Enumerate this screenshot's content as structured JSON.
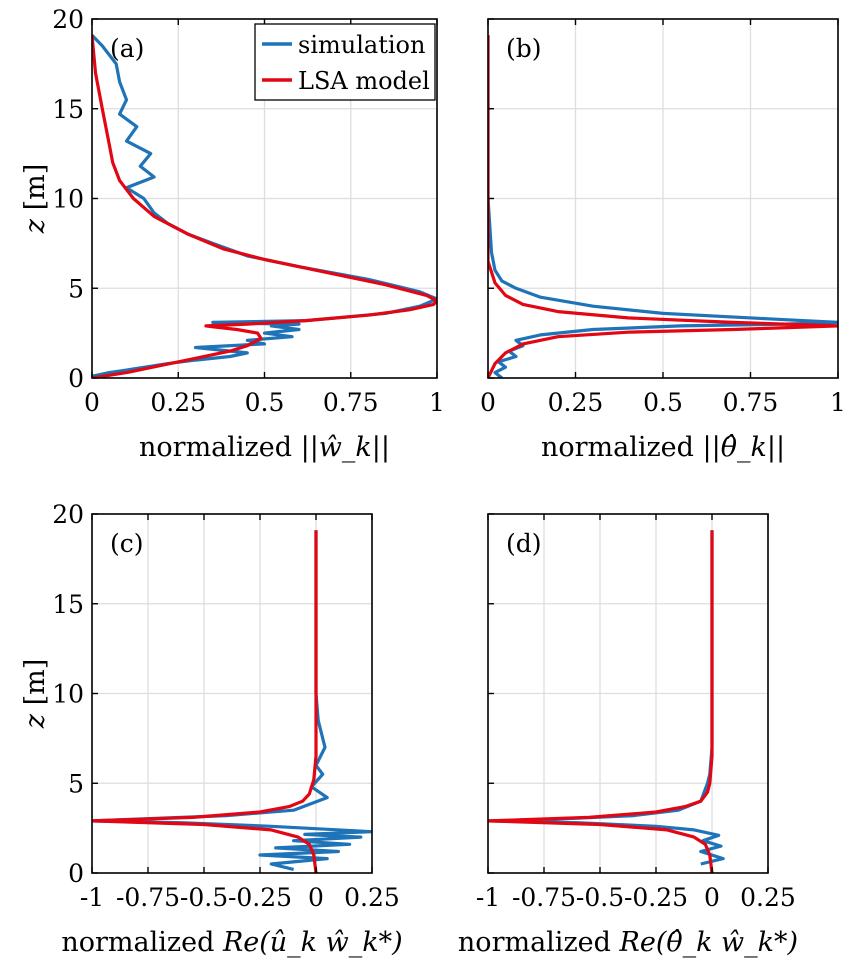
{
  "colors": {
    "simulation": "#1f73b8",
    "lsa_model": "#e30613",
    "grid": "#dedede",
    "axis": "#000000"
  },
  "legend": {
    "location": "top-right",
    "entries": [
      "simulation",
      "LSA model"
    ]
  },
  "shared": {
    "ylabel_var": "z",
    "ylabel_unit": "[m]",
    "ylim": [
      0,
      20
    ],
    "yticks": [
      0,
      5,
      10,
      15,
      20
    ],
    "ytick_labels": [
      "0",
      "5",
      "10",
      "15",
      "20"
    ]
  },
  "chart_data": [
    {
      "type": "line",
      "panel_label": "(a)",
      "xlabel_prefix": "normalized",
      "xlabel_math": "||ŵ_k||",
      "xlim": [
        0,
        1
      ],
      "xticks": [
        0,
        0.25,
        0.5,
        0.75,
        1
      ],
      "xtick_labels": [
        "0",
        "0.25",
        "0.5",
        "0.75",
        "1"
      ],
      "grid": true,
      "series": [
        {
          "name": "simulation",
          "color": "#1f73b8",
          "x": [
            0.0,
            0.05,
            0.12,
            0.22,
            0.3,
            0.4,
            0.45,
            0.3,
            0.5,
            0.45,
            0.58,
            0.5,
            0.6,
            0.52,
            0.6,
            0.4,
            0.35,
            0.62,
            0.85,
            0.95,
            1.0,
            0.95,
            0.8,
            0.6,
            0.45,
            0.35,
            0.28,
            0.22,
            0.18,
            0.15,
            0.1,
            0.18,
            0.14,
            0.17,
            0.1,
            0.13,
            0.08,
            0.1,
            0.08,
            0.07,
            0.03,
            0.0
          ],
          "z": [
            0.1,
            0.3,
            0.5,
            0.8,
            1.0,
            1.2,
            1.4,
            1.7,
            1.9,
            2.1,
            2.3,
            2.5,
            2.7,
            2.9,
            3.0,
            3.05,
            3.1,
            3.2,
            3.6,
            4.0,
            4.4,
            4.8,
            5.5,
            6.2,
            6.8,
            7.5,
            8.0,
            8.6,
            9.2,
            10.0,
            10.6,
            11.2,
            11.8,
            12.5,
            13.2,
            14.0,
            14.7,
            15.5,
            16.5,
            17.5,
            18.5,
            19.1
          ]
        },
        {
          "name": "LSA model",
          "color": "#e30613",
          "x": [
            0.0,
            0.1,
            0.2,
            0.3,
            0.4,
            0.45,
            0.49,
            0.48,
            0.42,
            0.35,
            0.33,
            0.45,
            0.62,
            0.8,
            0.92,
            0.99,
            1.0,
            0.97,
            0.85,
            0.65,
            0.5,
            0.38,
            0.28,
            0.18,
            0.12,
            0.08,
            0.06,
            0.05,
            0.03,
            0.01,
            0.0
          ],
          "z": [
            0.0,
            0.3,
            0.7,
            1.1,
            1.5,
            1.8,
            2.2,
            2.5,
            2.7,
            2.85,
            2.9,
            3.0,
            3.2,
            3.5,
            3.8,
            4.1,
            4.3,
            4.6,
            5.2,
            6.0,
            6.6,
            7.2,
            8.0,
            9.0,
            10.0,
            11.0,
            12.0,
            13.0,
            15.0,
            17.0,
            19.1
          ]
        }
      ]
    },
    {
      "type": "line",
      "panel_label": "(b)",
      "xlabel_prefix": "normalized",
      "xlabel_math": "||θ̂_k||",
      "xlim": [
        0,
        1
      ],
      "xticks": [
        0,
        0.25,
        0.5,
        0.75,
        1
      ],
      "xtick_labels": [
        "0",
        "0.25",
        "0.5",
        "0.75",
        "1"
      ],
      "grid": true,
      "series": [
        {
          "name": "simulation",
          "color": "#1f73b8",
          "x": [
            0.04,
            0.02,
            0.05,
            0.03,
            0.08,
            0.06,
            0.1,
            0.08,
            0.15,
            0.3,
            0.55,
            0.85,
            1.0,
            0.8,
            0.5,
            0.3,
            0.15,
            0.08,
            0.04,
            0.02,
            0.01,
            0.0,
            0.0
          ],
          "z": [
            0.0,
            0.3,
            0.6,
            0.9,
            1.2,
            1.5,
            1.8,
            2.1,
            2.4,
            2.7,
            2.9,
            3.0,
            3.1,
            3.3,
            3.6,
            4.0,
            4.5,
            5.0,
            5.4,
            6.0,
            7.0,
            10.0,
            19.1
          ]
        },
        {
          "name": "LSA model",
          "color": "#e30613",
          "x": [
            0.0,
            0.02,
            0.05,
            0.1,
            0.2,
            0.4,
            0.7,
            1.0,
            0.7,
            0.4,
            0.2,
            0.1,
            0.05,
            0.02,
            0.0,
            0.0
          ],
          "z": [
            0.0,
            0.8,
            1.4,
            1.9,
            2.3,
            2.55,
            2.7,
            2.9,
            3.1,
            3.35,
            3.7,
            4.1,
            4.6,
            5.3,
            6.5,
            19.1
          ]
        }
      ]
    },
    {
      "type": "line",
      "panel_label": "(c)",
      "xlabel_prefix": "normalized",
      "xlabel_math": "Re(û_k ŵ_k*)",
      "xlim": [
        -1,
        0.25
      ],
      "xticks": [
        -1,
        -0.75,
        -0.5,
        -0.25,
        0,
        0.25
      ],
      "xtick_labels": [
        "-1",
        "-0.75",
        "-0.5",
        "-0.25",
        "0",
        "0.25"
      ],
      "grid": true,
      "series": [
        {
          "name": "simulation",
          "color": "#1f73b8",
          "x": [
            -0.1,
            -0.2,
            0.05,
            -0.25,
            0.1,
            -0.18,
            0.15,
            -0.1,
            0.2,
            -0.05,
            0.25,
            -0.2,
            -0.6,
            -1.0,
            -0.8,
            -0.4,
            -0.1,
            0.05,
            -0.02,
            0.03,
            0.0,
            0.04,
            0.01,
            0.0,
            0.0
          ],
          "z": [
            0.2,
            0.5,
            0.8,
            1.0,
            1.2,
            1.4,
            1.6,
            1.8,
            2.0,
            2.15,
            2.3,
            2.6,
            2.8,
            2.9,
            3.0,
            3.2,
            3.5,
            4.2,
            4.8,
            5.5,
            6.0,
            7.0,
            8.5,
            10.0,
            19.1
          ]
        },
        {
          "name": "LSA model",
          "color": "#e30613",
          "x": [
            0.0,
            -0.01,
            -0.03,
            -0.08,
            -0.2,
            -0.5,
            -1.0,
            -0.55,
            -0.25,
            -0.12,
            -0.06,
            -0.03,
            -0.01,
            0.0,
            0.0
          ],
          "z": [
            0.0,
            1.0,
            1.6,
            2.0,
            2.4,
            2.7,
            2.9,
            3.1,
            3.4,
            3.7,
            4.0,
            4.4,
            5.2,
            6.5,
            19.1
          ]
        }
      ]
    },
    {
      "type": "line",
      "panel_label": "(d)",
      "xlabel_prefix": "normalized",
      "xlabel_math": "Re(θ̂_k ŵ_k*)",
      "xlim": [
        -1,
        0.25
      ],
      "xticks": [
        -1,
        -0.75,
        -0.5,
        -0.25,
        0,
        0.25
      ],
      "xtick_labels": [
        "-1",
        "-0.75",
        "-0.5",
        "-0.25",
        "0",
        "0.25"
      ],
      "grid": true,
      "series": [
        {
          "name": "simulation",
          "color": "#1f73b8",
          "x": [
            -0.05,
            0.05,
            -0.05,
            0.04,
            -0.04,
            0.03,
            -0.08,
            -0.25,
            -0.6,
            -1.0,
            -0.7,
            -0.35,
            -0.15,
            -0.05,
            -0.02,
            -0.01,
            0.0,
            0.0
          ],
          "z": [
            0.5,
            0.8,
            1.2,
            1.5,
            1.8,
            2.1,
            2.4,
            2.6,
            2.8,
            2.9,
            3.0,
            3.2,
            3.5,
            4.0,
            5.0,
            5.5,
            7.0,
            19.1
          ]
        },
        {
          "name": "LSA model",
          "color": "#e30613",
          "x": [
            0.0,
            -0.01,
            -0.03,
            -0.08,
            -0.2,
            -0.5,
            -1.0,
            -0.55,
            -0.25,
            -0.12,
            -0.05,
            -0.02,
            -0.01,
            0.0,
            0.0
          ],
          "z": [
            0.0,
            1.0,
            1.6,
            2.0,
            2.4,
            2.7,
            2.9,
            3.1,
            3.4,
            3.7,
            4.0,
            4.5,
            5.0,
            6.5,
            19.1
          ]
        }
      ]
    }
  ]
}
